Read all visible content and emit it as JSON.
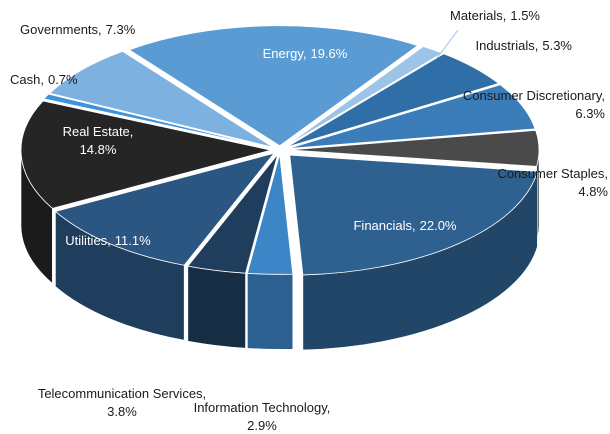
{
  "chart_data": {
    "type": "pie",
    "categories": [
      "Energy,",
      "Materials,",
      "Industrials,",
      "Consumer Discretionary,",
      "Consumer Staples,",
      "Financials,",
      "Information Technology,",
      "Telecommunication Services,",
      "Utilities,",
      "Real Estate,",
      "Cash,",
      "Governments,"
    ],
    "values": [
      19.6,
      1.5,
      5.3,
      6.3,
      4.8,
      22.0,
      2.9,
      3.8,
      11.1,
      14.8,
      0.7,
      7.3
    ],
    "value_labels": [
      "19.6%",
      "1.5%",
      "5.3%",
      "6.3%",
      "4.8%",
      "22.0%",
      "2.9%",
      "3.8%",
      "11.1%",
      "14.8%",
      "0.7%",
      "7.3%"
    ],
    "colors": [
      "#5a9bd3",
      "#9cc4e8",
      "#2f6ea6",
      "#3b7db8",
      "#4a4a4a",
      "#2f6190",
      "#3c86c8",
      "#1f3e5e",
      "#2b5682",
      "#252525",
      "#3f93dc",
      "#7db2e0"
    ]
  }
}
